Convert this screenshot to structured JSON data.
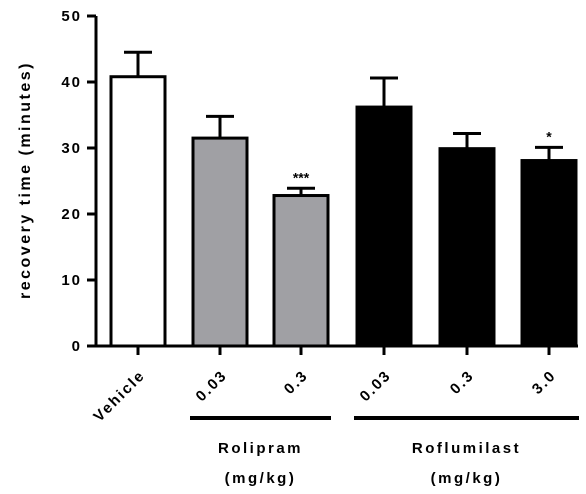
{
  "chart_data": {
    "type": "bar",
    "ylabel": "recovery time (minutes)",
    "ylim": [
      0,
      50
    ],
    "yticks": [
      0,
      10,
      20,
      30,
      40,
      50
    ],
    "categories": [
      "Vehicle",
      "0.03",
      "0.3",
      "0.03",
      "0.3",
      "3.0"
    ],
    "values": [
      40.8,
      31.5,
      22.8,
      36.2,
      29.9,
      28.1
    ],
    "errors": [
      3.7,
      3.3,
      1.1,
      4.4,
      2.3,
      2.0
    ],
    "significance": [
      "",
      "",
      "***",
      "",
      "",
      "*"
    ],
    "bar_colors": [
      "#ffffff",
      "#a0a0a4",
      "#a0a0a4",
      "#000000",
      "#000000",
      "#000000"
    ],
    "groups": [
      {
        "label_line1": "Rolipram",
        "label_line2": "(mg/kg)",
        "members": [
          1,
          2
        ]
      },
      {
        "label_line1": "Roflumilast",
        "label_line2": "(mg/kg)",
        "members": [
          3,
          4,
          5
        ]
      }
    ]
  }
}
